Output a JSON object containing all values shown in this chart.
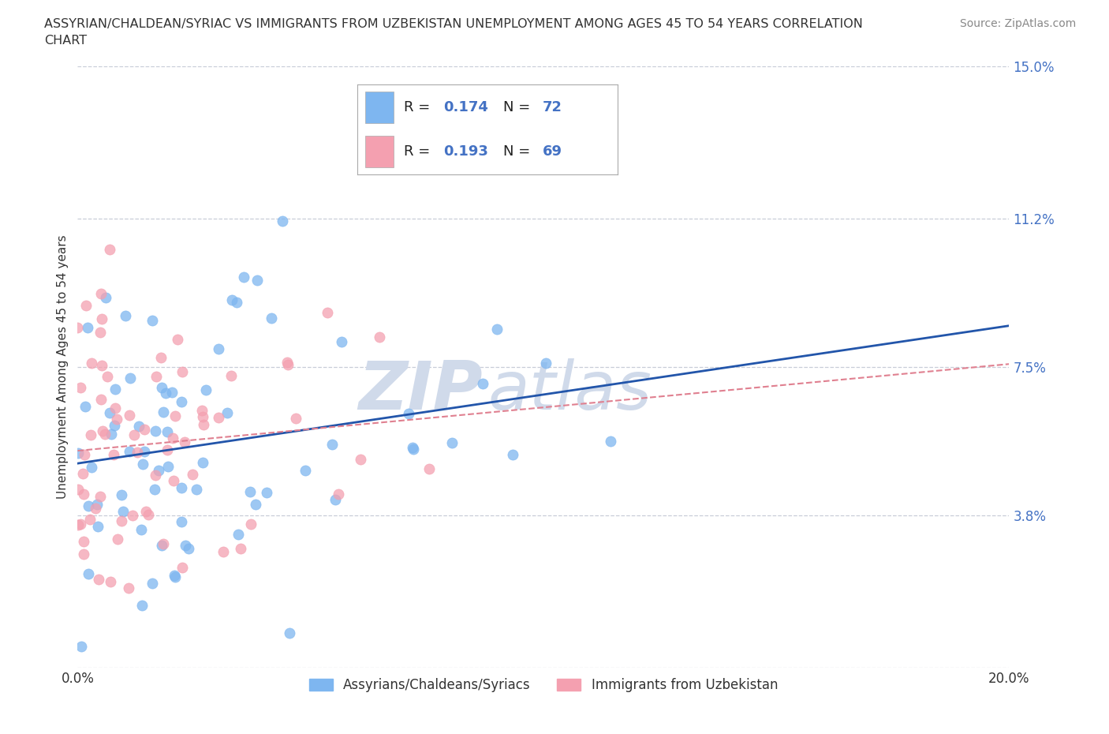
{
  "title_line1": "ASSYRIAN/CHALDEAN/SYRIAC VS IMMIGRANTS FROM UZBEKISTAN UNEMPLOYMENT AMONG AGES 45 TO 54 YEARS CORRELATION",
  "title_line2": "CHART",
  "source": "Source: ZipAtlas.com",
  "ylabel": "Unemployment Among Ages 45 to 54 years",
  "xlim": [
    0.0,
    0.2
  ],
  "ylim": [
    0.0,
    0.15
  ],
  "ytick_vals": [
    0.0,
    0.038,
    0.075,
    0.112,
    0.15
  ],
  "ytick_labels": [
    "",
    "3.8%",
    "7.5%",
    "11.2%",
    "15.0%"
  ],
  "xtick_vals": [
    0.0,
    0.05,
    0.1,
    0.15,
    0.2
  ],
  "xtick_labels": [
    "0.0%",
    "",
    "",
    "",
    "20.0%"
  ],
  "grid_color": "#c8cdd8",
  "background_color": "#ffffff",
  "series1_color": "#7eb6f0",
  "series2_color": "#f4a0b0",
  "series1_label": "Assyrians/Chaldeans/Syriacs",
  "series2_label": "Immigrants from Uzbekistan",
  "R1": 0.174,
  "N1": 72,
  "R2": 0.193,
  "N2": 69,
  "trend1_color": "#2255aa",
  "trend2_color": "#e08090",
  "watermark_color": "#d0daea",
  "tick_color": "#4472c4",
  "label_color": "#333333"
}
